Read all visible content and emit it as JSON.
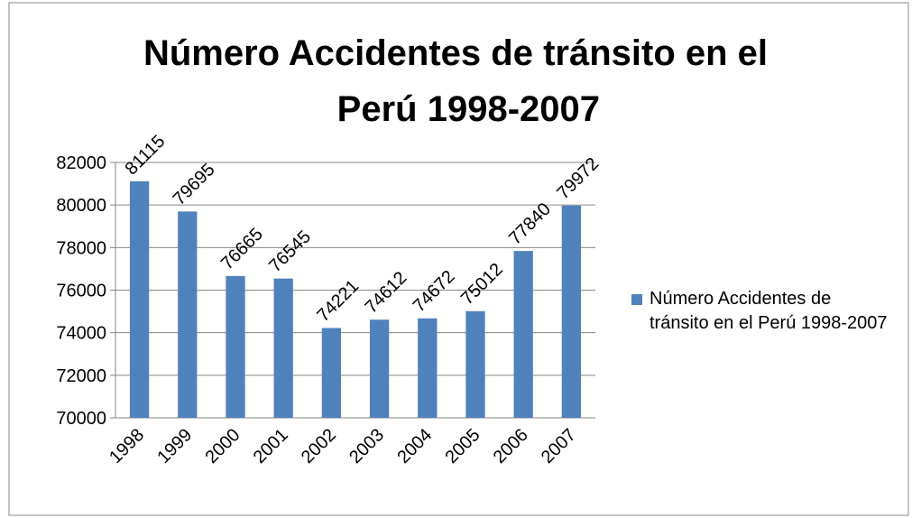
{
  "chart_data": {
    "type": "bar",
    "title": [
      "Número Accidentes de tránsito en el",
      "Perú 1998-2007"
    ],
    "categories": [
      "1998",
      "1999",
      "2000",
      "2001",
      "2002",
      "2003",
      "2004",
      "2005",
      "2006",
      "2007"
    ],
    "series": [
      {
        "name": "Número Accidentes de tránsito en el Perú 1998-2007",
        "color": "#4f81bd",
        "values": [
          81115,
          79695,
          76665,
          76545,
          74221,
          74612,
          74672,
          75012,
          77840,
          79972
        ]
      }
    ],
    "ylim": [
      70000,
      82000
    ],
    "yticks": [
      70000,
      72000,
      74000,
      76000,
      78000,
      80000,
      82000
    ],
    "grid": true,
    "legend": "right"
  }
}
